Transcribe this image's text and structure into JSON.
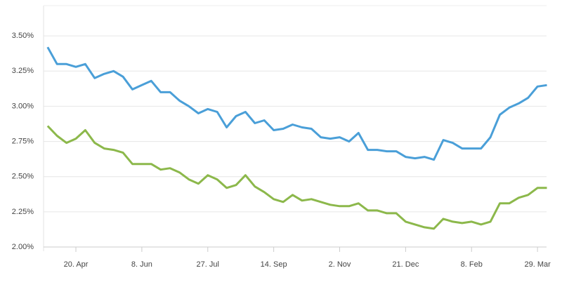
{
  "chart_data": {
    "type": "line",
    "categories": [
      null,
      null,
      null,
      "20. Apr",
      null,
      null,
      null,
      null,
      null,
      null,
      "8. Jun",
      null,
      null,
      null,
      null,
      null,
      null,
      "27. Jul",
      null,
      null,
      null,
      null,
      null,
      null,
      "14. Sep",
      null,
      null,
      null,
      null,
      null,
      null,
      "2. Nov",
      null,
      null,
      null,
      null,
      null,
      null,
      "21. Dec",
      null,
      null,
      null,
      null,
      null,
      null,
      "8. Feb",
      null,
      null,
      null,
      null,
      null,
      null,
      "29. Mar",
      null
    ],
    "series": [
      {
        "color": "#4a9fd8",
        "values": [
          3.42,
          3.3,
          3.3,
          3.28,
          3.3,
          3.2,
          3.23,
          3.25,
          3.21,
          3.12,
          3.15,
          3.18,
          3.1,
          3.1,
          3.04,
          3.0,
          2.95,
          2.98,
          2.96,
          2.85,
          2.93,
          2.96,
          2.88,
          2.9,
          2.83,
          2.84,
          2.87,
          2.85,
          2.84,
          2.78,
          2.77,
          2.78,
          2.75,
          2.81,
          2.69,
          2.69,
          2.68,
          2.68,
          2.64,
          2.63,
          2.64,
          2.62,
          2.76,
          2.74,
          2.7,
          2.7,
          2.7,
          2.78,
          2.94,
          2.99,
          3.02,
          3.06,
          3.14,
          3.15
        ]
      },
      {
        "color": "#8cb84b",
        "values": [
          2.86,
          2.79,
          2.74,
          2.77,
          2.83,
          2.74,
          2.7,
          2.69,
          2.67,
          2.59,
          2.59,
          2.59,
          2.55,
          2.56,
          2.53,
          2.48,
          2.45,
          2.51,
          2.48,
          2.42,
          2.44,
          2.51,
          2.43,
          2.39,
          2.34,
          2.32,
          2.37,
          2.33,
          2.34,
          2.32,
          2.3,
          2.29,
          2.29,
          2.31,
          2.26,
          2.26,
          2.24,
          2.24,
          2.18,
          2.16,
          2.14,
          2.13,
          2.2,
          2.18,
          2.17,
          2.18,
          2.16,
          2.18,
          2.31,
          2.31,
          2.35,
          2.37,
          2.42,
          2.42
        ]
      }
    ],
    "ylim": [
      2,
      3.75
    ],
    "yticks": [
      {
        "value": 2,
        "label": "2.00%"
      },
      {
        "value": 2.25,
        "label": "2.25%"
      },
      {
        "value": 2.5,
        "label": "2.50%"
      },
      {
        "value": 2.75,
        "label": "2.75%"
      },
      {
        "value": 3,
        "label": "3.00%"
      },
      {
        "value": 3.25,
        "label": "3.25%"
      },
      {
        "value": 3.5,
        "label": "3.50%"
      }
    ],
    "grid": true
  }
}
